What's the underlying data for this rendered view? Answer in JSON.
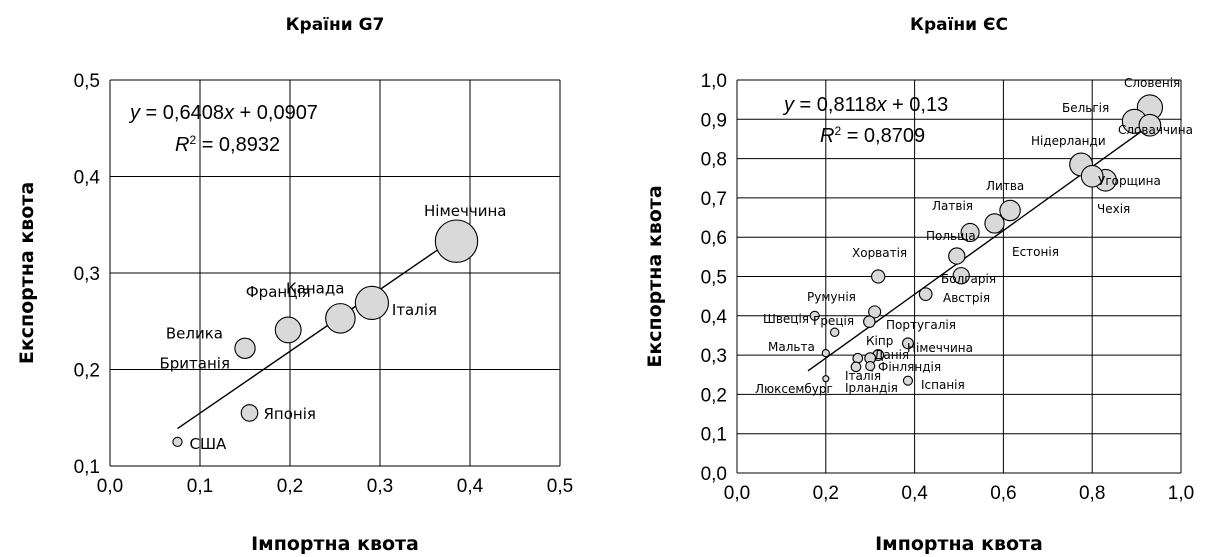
{
  "chart_data": [
    {
      "type": "scatter",
      "title": "Країни G7",
      "xlabel": "Імпортна квота",
      "ylabel": "Експортна квота",
      "xlim": [
        0,
        0.5
      ],
      "ylim": [
        0.1,
        0.5
      ],
      "xticks": [
        "0,0",
        "0,1",
        "0,2",
        "0,3",
        "0,4",
        "0,5"
      ],
      "yticks": [
        "0,1",
        "0,2",
        "0,3",
        "0,4",
        "0,5"
      ],
      "grid": true,
      "equation": {
        "line1_parts": [
          "y",
          " = 0,6408",
          "x",
          " + 0,0907"
        ],
        "line2_parts": [
          "R",
          "2",
          " = 0,8932"
        ]
      },
      "trendline": {
        "slope": 0.6408,
        "intercept": 0.0907,
        "x_range": [
          0.075,
          0.385
        ]
      },
      "points": [
        {
          "label": "США",
          "x": 0.075,
          "y": 0.125,
          "size": 1
        },
        {
          "label": "Японія",
          "x": 0.155,
          "y": 0.155,
          "size": 1.8
        },
        {
          "label": "Велика",
          "label2": "Британія",
          "x": 0.15,
          "y": 0.222,
          "size": 2.2
        },
        {
          "label": "Франція",
          "x": 0.198,
          "y": 0.241,
          "size": 2.8
        },
        {
          "label": "Канада",
          "x": 0.256,
          "y": 0.253,
          "size": 3.2
        },
        {
          "label": "Італія",
          "x": 0.291,
          "y": 0.269,
          "size": 3.6
        },
        {
          "label": "Німеччина",
          "x": 0.385,
          "y": 0.333,
          "size": 4.6
        }
      ]
    },
    {
      "type": "scatter",
      "title": "Країни ЄС",
      "xlabel": "Імпортна квота",
      "ylabel": "Експортна квота",
      "xlim": [
        0,
        1
      ],
      "ylim": [
        0,
        1
      ],
      "xticks": [
        "0,0",
        "0,2",
        "0,4",
        "0,6",
        "0,8",
        "1,0"
      ],
      "yticks": [
        "0,0",
        "0,1",
        "0,2",
        "0,3",
        "0,4",
        "0,5",
        "0,6",
        "0,7",
        "0,8",
        "0,9",
        "1,0"
      ],
      "grid": true,
      "equation": {
        "line1_parts": [
          "y",
          " = 0,8118",
          "x",
          " + 0,13"
        ],
        "line2_parts": [
          "R",
          "2",
          " = 0,8709"
        ]
      },
      "trendline": {
        "slope": 0.8118,
        "intercept": 0.13,
        "x_range": [
          0.16,
          0.92
        ]
      },
      "points": [
        {
          "label": "Словенія",
          "x": 0.93,
          "y": 0.93,
          "size": 4.2
        },
        {
          "label": "Бельгія",
          "x": 0.895,
          "y": 0.895,
          "size": 4.0
        },
        {
          "label": "Словаччина",
          "x": 0.93,
          "y": 0.885,
          "size": 3.6
        },
        {
          "label": "Нідерланди",
          "x": 0.775,
          "y": 0.785,
          "size": 3.8
        },
        {
          "label": "Угорщина",
          "x": 0.83,
          "y": 0.745,
          "size": 3.6
        },
        {
          "label": "Чехія",
          "x": 0.8,
          "y": 0.755,
          "size": 3.6
        },
        {
          "label": "Литва",
          "x": 0.615,
          "y": 0.668,
          "size": 3.4
        },
        {
          "label": "Естонія",
          "x": 0.58,
          "y": 0.635,
          "size": 3.2
        },
        {
          "label": "Латвія",
          "x": 0.525,
          "y": 0.612,
          "size": 3.0
        },
        {
          "label": "Польща",
          "x": 0.495,
          "y": 0.552,
          "size": 2.7
        },
        {
          "label": "Болгарія",
          "x": 0.505,
          "y": 0.502,
          "size": 2.7
        },
        {
          "label": "Хорватія",
          "x": 0.318,
          "y": 0.5,
          "size": 2.2
        },
        {
          "label": "Австрія",
          "x": 0.425,
          "y": 0.455,
          "size": 2.1
        },
        {
          "label": "Румунія",
          "x": 0.31,
          "y": 0.41,
          "size": 2.0
        },
        {
          "label": "Португалія",
          "x": 0.298,
          "y": 0.385,
          "size": 1.9
        },
        {
          "label": "Швеція",
          "x": 0.175,
          "y": 0.4,
          "size": 1.5
        },
        {
          "label": "Греція",
          "x": 0.22,
          "y": 0.358,
          "size": 1.4
        },
        {
          "label": "Мальта",
          "x": 0.2,
          "y": 0.305,
          "size": 1.2
        },
        {
          "label": "Кіпр",
          "x": 0.385,
          "y": 0.33,
          "size": 1.8
        },
        {
          "label": "Німеччина",
          "x": 0.318,
          "y": 0.3,
          "size": 1.8
        },
        {
          "label": "Данія",
          "x": 0.3,
          "y": 0.292,
          "size": 1.8
        },
        {
          "label": "Італія",
          "x": 0.272,
          "y": 0.292,
          "size": 1.6
        },
        {
          "label": "Фінляндія",
          "x": 0.268,
          "y": 0.27,
          "size": 1.6
        },
        {
          "label": "Ірландія",
          "x": 0.3,
          "y": 0.272,
          "size": 1.5
        },
        {
          "label": "Іспанія",
          "x": 0.385,
          "y": 0.235,
          "size": 1.5
        },
        {
          "label": "Люксембург",
          "x": 0.2,
          "y": 0.24,
          "size": 1.0
        }
      ]
    }
  ]
}
